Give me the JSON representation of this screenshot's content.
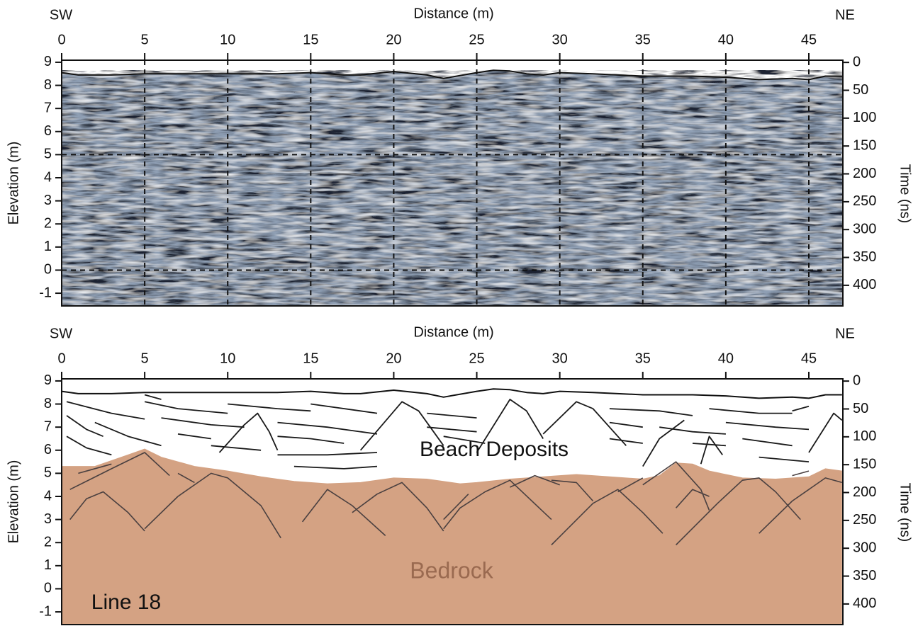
{
  "chart_data": [
    {
      "type": "radargram",
      "left_label": "SW",
      "right_label": "NE",
      "xlabel": "Distance (m)",
      "ylabel": "Elevation (m)",
      "y2label": "Time (ns)",
      "xlim": [
        0,
        47.05
      ],
      "xticks": [
        0,
        5,
        10,
        15,
        20,
        25,
        30,
        35,
        40,
        45
      ],
      "ylim": [
        -1.55,
        9.09
      ],
      "yticks": [
        -1,
        0,
        1,
        2,
        3,
        4,
        5,
        6,
        7,
        8,
        9
      ],
      "y2lim": [
        437,
        -4
      ],
      "y2ticks": [
        0,
        50,
        100,
        150,
        200,
        250,
        300,
        350,
        400
      ],
      "grid": true,
      "hlines": [
        5,
        0
      ],
      "surface": {
        "x": [
          0,
          1,
          3,
          5,
          8,
          10,
          13,
          15,
          17,
          18,
          20,
          22,
          23,
          25,
          26,
          27,
          28,
          29,
          30,
          32,
          35,
          38,
          40,
          42,
          44,
          45,
          46,
          47
        ],
        "values": [
          8.55,
          8.45,
          8.45,
          8.5,
          8.5,
          8.5,
          8.5,
          8.55,
          8.45,
          8.45,
          8.6,
          8.45,
          8.3,
          8.55,
          8.65,
          8.62,
          8.5,
          8.45,
          8.55,
          8.5,
          8.4,
          8.4,
          8.35,
          8.25,
          8.3,
          8.25,
          8.4,
          8.4
        ]
      }
    },
    {
      "type": "interpretation",
      "left_label": "SW",
      "right_label": "NE",
      "xlabel": "Distance (m)",
      "ylabel": "Elevation (m)",
      "y2label": "Time (ns)",
      "xlim": [
        0,
        47.05
      ],
      "xticks": [
        0,
        5,
        10,
        15,
        20,
        25,
        30,
        35,
        40,
        45
      ],
      "ylim": [
        -1.55,
        9.09
      ],
      "yticks": [
        -1,
        0,
        1,
        2,
        3,
        4,
        5,
        6,
        7,
        8,
        9
      ],
      "y2lim": [
        437,
        -4
      ],
      "y2ticks": [
        0,
        50,
        100,
        150,
        200,
        250,
        300,
        350,
        400
      ],
      "annotations": [
        "Beach Deposits",
        "Bedrock",
        "Line 18"
      ],
      "bedrock_color": "#d4a283",
      "reflector_color": "#1a1a1a",
      "bedrock_reflector_color": "#4a4040",
      "surface": {
        "x": [
          0,
          1,
          3,
          5,
          8,
          10,
          13,
          15,
          17,
          18,
          20,
          22,
          23,
          25,
          26,
          27,
          28,
          29,
          30,
          32,
          35,
          38,
          40,
          42,
          44,
          45,
          46,
          47
        ],
        "values": [
          8.55,
          8.45,
          8.45,
          8.5,
          8.5,
          8.5,
          8.5,
          8.55,
          8.45,
          8.45,
          8.6,
          8.45,
          8.3,
          8.55,
          8.65,
          8.62,
          8.5,
          8.45,
          8.55,
          8.5,
          8.4,
          8.4,
          8.35,
          8.25,
          8.3,
          8.25,
          8.4,
          8.4
        ]
      },
      "bedrock_top": {
        "x": [
          0,
          2,
          4,
          5,
          6,
          8,
          10,
          12,
          14,
          16,
          18,
          20,
          22,
          24,
          25,
          27,
          29,
          31,
          33,
          35,
          36,
          37,
          38,
          39,
          41,
          43,
          44,
          45,
          46,
          47
        ],
        "values": [
          5.3,
          5.3,
          5.8,
          6.05,
          5.7,
          5.3,
          5.1,
          4.85,
          4.65,
          4.55,
          4.6,
          4.8,
          4.75,
          4.55,
          4.6,
          4.75,
          4.85,
          4.95,
          4.85,
          4.75,
          4.9,
          5.45,
          5.4,
          5.1,
          4.8,
          4.75,
          4.8,
          4.85,
          5.2,
          5.1
        ]
      },
      "reflectors": [
        {
          "x": [
            0.3,
            3,
            5
          ],
          "values": [
            8.1,
            7.6,
            7.35
          ]
        },
        {
          "x": [
            0.3,
            1.5,
            2.5
          ],
          "values": [
            7.5,
            6.9,
            6.6
          ]
        },
        {
          "x": [
            0.3,
            1.5,
            3
          ],
          "values": [
            6.6,
            6.1,
            5.8
          ]
        },
        {
          "x": [
            2,
            4,
            6
          ],
          "values": [
            7.2,
            6.6,
            6.2
          ]
        },
        {
          "x": [
            5,
            7,
            10
          ],
          "values": [
            8.1,
            7.8,
            7.6
          ]
        },
        {
          "x": [
            5,
            6
          ],
          "values": [
            8.4,
            8.2
          ]
        },
        {
          "x": [
            6,
            9,
            11
          ],
          "values": [
            7.4,
            7.1,
            7.0
          ]
        },
        {
          "x": [
            7,
            9
          ],
          "values": [
            6.7,
            6.5
          ]
        },
        {
          "x": [
            9,
            12
          ],
          "values": [
            6.2,
            6.0
          ]
        },
        {
          "x": [
            10,
            13,
            15
          ],
          "values": [
            8.0,
            7.8,
            7.7
          ]
        },
        {
          "x": [
            9.5,
            11,
            11.8,
            12.5,
            13
          ],
          "values": [
            5.9,
            7.1,
            7.6,
            6.8,
            6.0
          ]
        },
        {
          "x": [
            13,
            16,
            19
          ],
          "values": [
            7.2,
            7.0,
            6.7
          ]
        },
        {
          "x": [
            13,
            15,
            17
          ],
          "values": [
            6.6,
            6.5,
            6.3
          ]
        },
        {
          "x": [
            13,
            16,
            19
          ],
          "values": [
            5.8,
            5.8,
            5.9
          ]
        },
        {
          "x": [
            14,
            17,
            19
          ],
          "values": [
            5.3,
            5.2,
            5.3
          ]
        },
        {
          "x": [
            15,
            18,
            19
          ],
          "values": [
            8.0,
            7.7,
            7.6
          ]
        },
        {
          "x": [
            18,
            20.5,
            21.5,
            23
          ],
          "values": [
            6.0,
            8.1,
            7.7,
            6.2
          ]
        },
        {
          "x": [
            22,
            25
          ],
          "values": [
            7.6,
            7.4
          ]
        },
        {
          "x": [
            22,
            25
          ],
          "values": [
            7.0,
            6.8
          ]
        },
        {
          "x": [
            23,
            25.5
          ],
          "values": [
            6.6,
            6.3
          ]
        },
        {
          "x": [
            25,
            27,
            28,
            29
          ],
          "values": [
            5.9,
            8.2,
            7.7,
            6.5
          ]
        },
        {
          "x": [
            29,
            31,
            32,
            34
          ],
          "values": [
            6.7,
            8.1,
            7.8,
            6.2
          ]
        },
        {
          "x": [
            33,
            36,
            38
          ],
          "values": [
            7.8,
            7.7,
            7.5
          ]
        },
        {
          "x": [
            33,
            35
          ],
          "values": [
            7.2,
            7.0
          ]
        },
        {
          "x": [
            33,
            35
          ],
          "values": [
            6.5,
            6.3
          ]
        },
        {
          "x": [
            36,
            38,
            40
          ],
          "values": [
            7.0,
            6.8,
            6.7
          ]
        },
        {
          "x": [
            35,
            36,
            37.5
          ],
          "values": [
            5.3,
            6.5,
            7.3
          ]
        },
        {
          "x": [
            38,
            40
          ],
          "values": [
            6.3,
            6.2
          ]
        },
        {
          "x": [
            38.5,
            39,
            39.8
          ],
          "values": [
            5.4,
            6.6,
            5.8
          ]
        },
        {
          "x": [
            39,
            42,
            44
          ],
          "values": [
            7.8,
            7.6,
            7.6
          ]
        },
        {
          "x": [
            40,
            43,
            45
          ],
          "values": [
            7.2,
            7.0,
            6.9
          ]
        },
        {
          "x": [
            41,
            44
          ],
          "values": [
            6.5,
            6.2
          ]
        },
        {
          "x": [
            42,
            45
          ],
          "values": [
            5.7,
            5.5
          ]
        },
        {
          "x": [
            44,
            45
          ],
          "values": [
            7.7,
            7.9
          ]
        },
        {
          "x": [
            45,
            46.5,
            47
          ],
          "values": [
            5.9,
            7.6,
            7.3
          ]
        }
      ],
      "bedrock_reflectors": [
        {
          "x": [
            0.5,
            1.5,
            2.5,
            4,
            5
          ],
          "values": [
            3.0,
            3.9,
            4.2,
            3.3,
            2.5
          ]
        },
        {
          "x": [
            0.5,
            3,
            5,
            6.5
          ],
          "values": [
            4.3,
            5.2,
            5.9,
            4.9
          ]
        },
        {
          "x": [
            1,
            3
          ],
          "values": [
            5.0,
            5.4
          ]
        },
        {
          "x": [
            5,
            7,
            9,
            10,
            12,
            13.2
          ],
          "values": [
            2.6,
            4.0,
            5.0,
            4.8,
            3.6,
            2.2
          ]
        },
        {
          "x": [
            7,
            8
          ],
          "values": [
            5.0,
            4.6
          ]
        },
        {
          "x": [
            14.5,
            16,
            17.5,
            19.5
          ],
          "values": [
            2.9,
            4.3,
            3.6,
            2.3
          ]
        },
        {
          "x": [
            17.5,
            19,
            20.5,
            22,
            23
          ],
          "values": [
            3.3,
            4.1,
            4.6,
            3.5,
            2.5
          ]
        },
        {
          "x": [
            23,
            24,
            25.5,
            27,
            29.5
          ],
          "values": [
            2.6,
            3.5,
            4.2,
            4.7,
            3.0
          ]
        },
        {
          "x": [
            23,
            24.5
          ],
          "values": [
            3.0,
            4.1
          ]
        },
        {
          "x": [
            27,
            28.5,
            30
          ],
          "values": [
            4.4,
            4.9,
            4.5
          ]
        },
        {
          "x": [
            29.5,
            31,
            32
          ],
          "values": [
            4.7,
            4.6,
            3.8
          ]
        },
        {
          "x": [
            29.5,
            32,
            33.5,
            35,
            36.2
          ],
          "values": [
            1.9,
            3.7,
            4.3,
            3.3,
            2.4
          ]
        },
        {
          "x": [
            33.5,
            35
          ],
          "values": [
            4.2,
            4.8
          ]
        },
        {
          "x": [
            35,
            37,
            38.5,
            39
          ],
          "values": [
            4.5,
            5.5,
            4.3,
            3.4
          ]
        },
        {
          "x": [
            37,
            38,
            39
          ],
          "values": [
            3.5,
            4.3,
            4.0
          ]
        },
        {
          "x": [
            37,
            39.5,
            41,
            42,
            43,
            44.5
          ],
          "values": [
            1.9,
            3.7,
            4.7,
            4.8,
            4.2,
            3.0
          ]
        },
        {
          "x": [
            42,
            44,
            46,
            47
          ],
          "values": [
            2.4,
            3.8,
            4.8,
            4.6
          ]
        },
        {
          "x": [
            44,
            45
          ],
          "values": [
            4.9,
            5.1
          ]
        }
      ]
    }
  ]
}
